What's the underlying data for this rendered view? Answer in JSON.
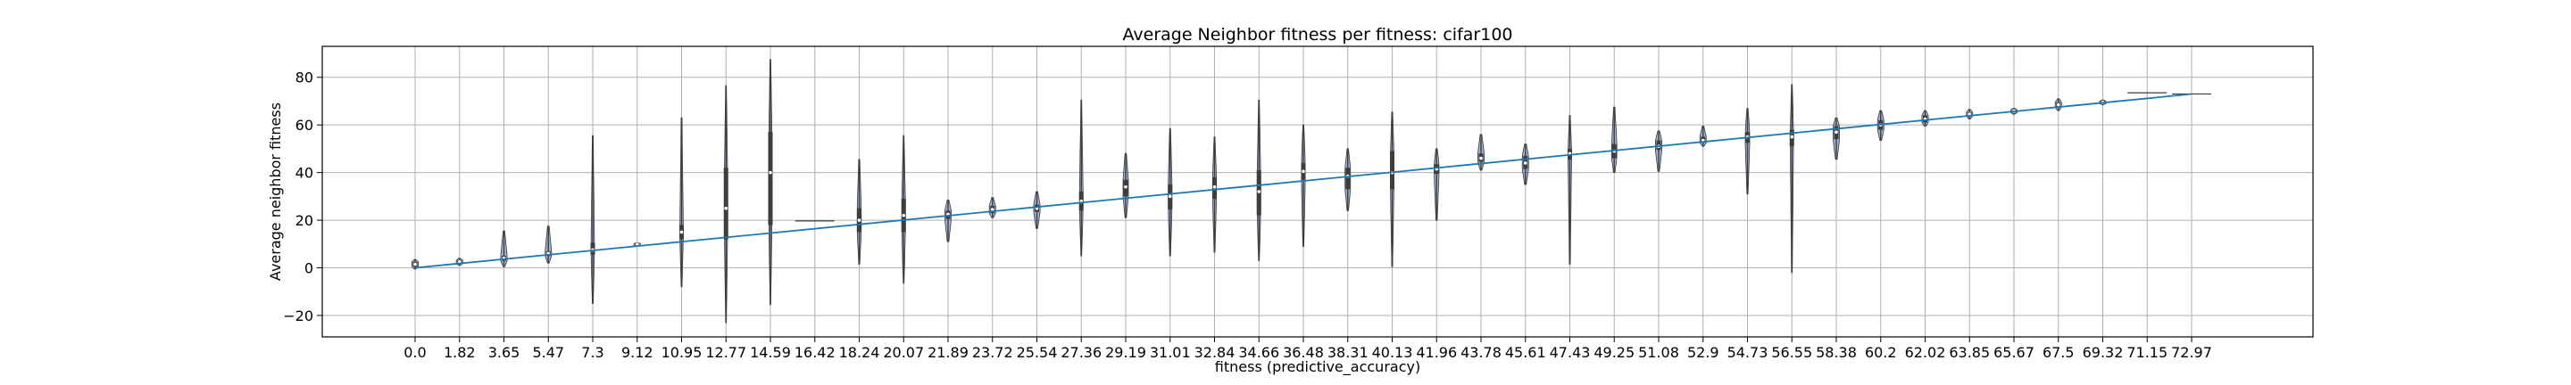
{
  "chart_data": {
    "type": "violin-line",
    "title": "Average Neighbor fitness per fitness: cifar100",
    "xlabel": "fitness (predictive_accuracy)",
    "ylabel": "Average neighbor fitness",
    "ylim": [
      -29,
      93
    ],
    "y_ticks": [
      -20,
      0,
      20,
      40,
      60,
      80
    ],
    "grid": true,
    "x_categories": [
      "0.0",
      "1.82",
      "3.65",
      "5.47",
      "7.3",
      "9.12",
      "10.95",
      "12.77",
      "14.59",
      "16.42",
      "18.24",
      "20.07",
      "21.89",
      "23.72",
      "25.54",
      "27.36",
      "29.19",
      "31.01",
      "32.84",
      "34.66",
      "36.48",
      "38.31",
      "40.13",
      "41.96",
      "43.78",
      "45.61",
      "47.43",
      "49.25",
      "51.08",
      "52.9",
      "54.73",
      "56.55",
      "58.38",
      "60.2",
      "62.02",
      "63.85",
      "65.67",
      "67.5",
      "69.32",
      "71.15",
      "72.97"
    ],
    "distributions": [
      {
        "x": "0.0",
        "min": -0.5,
        "q1": 0.5,
        "median": 1.5,
        "q3": 2.5,
        "max": 3.5
      },
      {
        "x": "1.82",
        "min": 1.0,
        "q1": 1.8,
        "median": 2.5,
        "q3": 3.2,
        "max": 4.0
      },
      {
        "x": "3.65",
        "min": 0.5,
        "q1": 3.0,
        "median": 4.0,
        "q3": 5.0,
        "max": 15.5
      },
      {
        "x": "5.47",
        "min": 2.0,
        "q1": 5.0,
        "median": 6.0,
        "q3": 7.0,
        "max": 17.5
      },
      {
        "x": "7.3",
        "min": -15.0,
        "q1": 5.5,
        "median": 7.5,
        "q3": 10.5,
        "max": 55.5
      },
      {
        "x": "9.12",
        "min": 9.0,
        "q1": 9.4,
        "median": 9.8,
        "q3": 10.2,
        "max": 10.5
      },
      {
        "x": "10.95",
        "min": -8.0,
        "q1": 12.0,
        "median": 15.0,
        "q3": 18.0,
        "max": 63.0
      },
      {
        "x": "12.77",
        "min": -23.0,
        "q1": 12.0,
        "median": 25.0,
        "q3": 42.0,
        "max": 76.5
      },
      {
        "x": "14.59",
        "min": -15.5,
        "q1": 18.0,
        "median": 40.0,
        "q3": 57.0,
        "max": 87.5
      },
      {
        "x": "16.42",
        "min": 19.5,
        "q1": 19.6,
        "median": 19.7,
        "q3": 19.8,
        "max": 19.9
      },
      {
        "x": "18.24",
        "min": 1.5,
        "q1": 15.0,
        "median": 20.0,
        "q3": 25.0,
        "max": 45.5
      },
      {
        "x": "20.07",
        "min": -6.5,
        "q1": 15.0,
        "median": 22.0,
        "q3": 29.0,
        "max": 55.5
      },
      {
        "x": "21.89",
        "min": 11.0,
        "q1": 20.5,
        "median": 22.5,
        "q3": 24.0,
        "max": 28.5
      },
      {
        "x": "23.72",
        "min": 21.0,
        "q1": 23.0,
        "median": 24.5,
        "q3": 26.0,
        "max": 29.5
      },
      {
        "x": "25.54",
        "min": 16.5,
        "q1": 23.5,
        "median": 25.0,
        "q3": 26.5,
        "max": 32.0
      },
      {
        "x": "27.36",
        "min": 5.0,
        "q1": 24.0,
        "median": 28.0,
        "q3": 32.0,
        "max": 70.5
      },
      {
        "x": "29.19",
        "min": 21.0,
        "q1": 30.0,
        "median": 34.0,
        "q3": 37.0,
        "max": 48.0
      },
      {
        "x": "31.01",
        "min": 5.0,
        "q1": 24.5,
        "median": 30.0,
        "q3": 35.0,
        "max": 58.5
      },
      {
        "x": "32.84",
        "min": 6.5,
        "q1": 29.0,
        "median": 34.0,
        "q3": 38.0,
        "max": 55.0
      },
      {
        "x": "34.66",
        "min": 3.0,
        "q1": 22.0,
        "median": 32.0,
        "q3": 41.0,
        "max": 70.5
      },
      {
        "x": "36.48",
        "min": 9.0,
        "q1": 37.0,
        "median": 40.5,
        "q3": 44.0,
        "max": 60.0
      },
      {
        "x": "38.31",
        "min": 24.0,
        "q1": 33.0,
        "median": 38.5,
        "q3": 42.0,
        "max": 50.0
      },
      {
        "x": "40.13",
        "min": 0.5,
        "q1": 33.0,
        "median": 40.0,
        "q3": 49.0,
        "max": 65.5
      },
      {
        "x": "41.96",
        "min": 20.0,
        "q1": 39.5,
        "median": 41.5,
        "q3": 43.5,
        "max": 50.0
      },
      {
        "x": "43.78",
        "min": 41.0,
        "q1": 44.5,
        "median": 46.0,
        "q3": 48.0,
        "max": 56.0
      },
      {
        "x": "45.61",
        "min": 35.0,
        "q1": 41.5,
        "median": 44.0,
        "q3": 47.0,
        "max": 52.0
      },
      {
        "x": "47.43",
        "min": 1.5,
        "q1": 45.5,
        "median": 48.0,
        "q3": 50.0,
        "max": 64.0
      },
      {
        "x": "49.25",
        "min": 40.0,
        "q1": 46.0,
        "median": 49.0,
        "q3": 52.0,
        "max": 67.5
      },
      {
        "x": "51.08",
        "min": 40.5,
        "q1": 49.5,
        "median": 51.0,
        "q3": 53.5,
        "max": 57.5
      },
      {
        "x": "52.9",
        "min": 51.0,
        "q1": 52.5,
        "median": 53.5,
        "q3": 55.0,
        "max": 59.5
      },
      {
        "x": "54.73",
        "min": 31.0,
        "q1": 52.5,
        "median": 55.0,
        "q3": 57.0,
        "max": 67.0
      },
      {
        "x": "56.55",
        "min": -2.0,
        "q1": 51.0,
        "median": 55.0,
        "q3": 58.0,
        "max": 77.0
      },
      {
        "x": "58.38",
        "min": 45.5,
        "q1": 54.0,
        "median": 57.0,
        "q3": 59.5,
        "max": 63.0
      },
      {
        "x": "60.2",
        "min": 53.5,
        "q1": 58.0,
        "median": 60.0,
        "q3": 62.0,
        "max": 66.0
      },
      {
        "x": "62.02",
        "min": 59.5,
        "q1": 61.0,
        "median": 62.5,
        "q3": 64.0,
        "max": 66.0
      },
      {
        "x": "63.85",
        "min": 62.5,
        "q1": 63.8,
        "median": 64.5,
        "q3": 65.3,
        "max": 66.5
      },
      {
        "x": "65.67",
        "min": 64.5,
        "q1": 65.2,
        "median": 65.8,
        "q3": 66.3,
        "max": 67.0
      },
      {
        "x": "67.5",
        "min": 66.0,
        "q1": 67.5,
        "median": 68.5,
        "q3": 69.5,
        "max": 71.0
      },
      {
        "x": "69.32",
        "min": 68.5,
        "q1": 69.0,
        "median": 69.5,
        "q3": 70.0,
        "max": 70.5
      },
      {
        "x": "71.15",
        "min": 73.3,
        "q1": 73.4,
        "median": 73.5,
        "q3": 73.6,
        "max": 73.7
      },
      {
        "x": "72.97",
        "min": 72.9,
        "q1": 73.0,
        "median": 73.0,
        "q3": 73.0,
        "max": 73.1
      }
    ],
    "reference_line": {
      "from": [
        0,
        0
      ],
      "to": [
        72.97,
        72.97
      ]
    },
    "colors": {
      "violin": "#4c72b0",
      "line": "#1f77b4",
      "grid": "#b0b0b0",
      "whisker": "#3d3d3d"
    }
  }
}
